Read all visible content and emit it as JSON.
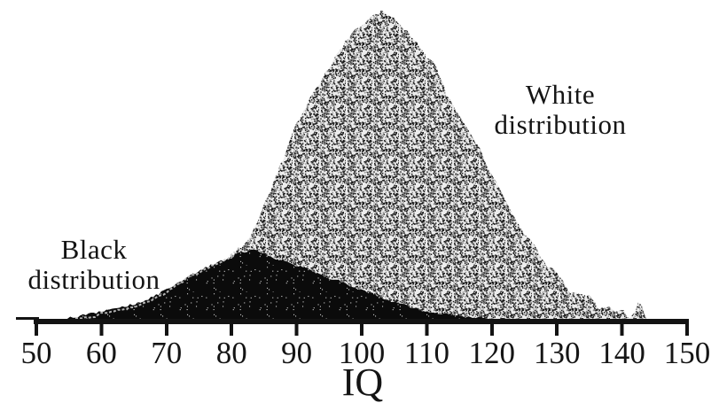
{
  "chart_data": {
    "type": "area",
    "xlabel": "IQ",
    "ylabel": "",
    "x_range": [
      50,
      150
    ],
    "x_ticks": [
      50,
      60,
      70,
      80,
      90,
      100,
      110,
      120,
      130,
      140,
      150
    ],
    "y_axis_visible": false,
    "legend_position": "none",
    "grid": false,
    "series": [
      {
        "name": "White distribution",
        "style": "stippled-gray-halftone",
        "color": "#9a9a9a",
        "points": [
          [
            55,
            0.005
          ],
          [
            56,
            0.008
          ],
          [
            57,
            0.011
          ],
          [
            58,
            0.014
          ],
          [
            59,
            0.017
          ],
          [
            60,
            0.026
          ],
          [
            61,
            0.03
          ],
          [
            62,
            0.034
          ],
          [
            63,
            0.038
          ],
          [
            64,
            0.043
          ],
          [
            65,
            0.048
          ],
          [
            66,
            0.054
          ],
          [
            67,
            0.061
          ],
          [
            68,
            0.071
          ],
          [
            69,
            0.083
          ],
          [
            70,
            0.094
          ],
          [
            71,
            0.109
          ],
          [
            72,
            0.123
          ],
          [
            73,
            0.137
          ],
          [
            74,
            0.149
          ],
          [
            75,
            0.157
          ],
          [
            76,
            0.169
          ],
          [
            77,
            0.18
          ],
          [
            78,
            0.189
          ],
          [
            79,
            0.197
          ],
          [
            80,
            0.214
          ],
          [
            81,
            0.231
          ],
          [
            82,
            0.248
          ],
          [
            83,
            0.28
          ],
          [
            84,
            0.323
          ],
          [
            85,
            0.374
          ],
          [
            86,
            0.426
          ],
          [
            87,
            0.477
          ],
          [
            88,
            0.529
          ],
          [
            89,
            0.583
          ],
          [
            90,
            0.637
          ],
          [
            91,
            0.677
          ],
          [
            92,
            0.717
          ],
          [
            93,
            0.754
          ],
          [
            94,
            0.786
          ],
          [
            95,
            0.82
          ],
          [
            96,
            0.854
          ],
          [
            97,
            0.886
          ],
          [
            98,
            0.914
          ],
          [
            99,
            0.94
          ],
          [
            100,
            0.96
          ],
          [
            101,
            0.974
          ],
          [
            102,
            0.989
          ],
          [
            103,
            1.0
          ],
          [
            104,
            0.991
          ],
          [
            105,
            0.977
          ],
          [
            106,
            0.957
          ],
          [
            107,
            0.934
          ],
          [
            108,
            0.911
          ],
          [
            109,
            0.886
          ],
          [
            110,
            0.857
          ],
          [
            111,
            0.837
          ],
          [
            112,
            0.794
          ],
          [
            113,
            0.737
          ],
          [
            114,
            0.694
          ],
          [
            115,
            0.657
          ],
          [
            116,
            0.63
          ],
          [
            117,
            0.595
          ],
          [
            118,
            0.565
          ],
          [
            119,
            0.515
          ],
          [
            120,
            0.47
          ],
          [
            121,
            0.43
          ],
          [
            122,
            0.39
          ],
          [
            123,
            0.35
          ],
          [
            124,
            0.31
          ],
          [
            125,
            0.285
          ],
          [
            126,
            0.265
          ],
          [
            127,
            0.23
          ],
          [
            128,
            0.19
          ],
          [
            129,
            0.172
          ],
          [
            130,
            0.16
          ],
          [
            131,
            0.126
          ],
          [
            132,
            0.092
          ],
          [
            133,
            0.089
          ],
          [
            134,
            0.087
          ],
          [
            135,
            0.08
          ],
          [
            135.8,
            0.06
          ],
          [
            136.5,
            0.037
          ],
          [
            137.5,
            0.043
          ],
          [
            138.5,
            0.04
          ],
          [
            139.5,
            0.035
          ],
          [
            140.3,
            0.031
          ],
          [
            140.8,
            0.02
          ],
          [
            141.3,
            0.014
          ],
          [
            142,
            0.031
          ],
          [
            142.5,
            0.057
          ],
          [
            143,
            0.049
          ],
          [
            143.4,
            0.031
          ],
          [
            143.8,
            0.009
          ],
          [
            144,
            0.004
          ]
        ]
      },
      {
        "name": "Black distribution",
        "style": "solid-black",
        "color": "#0b0b0b",
        "points": [
          [
            52,
            0.003
          ],
          [
            54,
            0.009
          ],
          [
            56,
            0.014
          ],
          [
            58,
            0.023
          ],
          [
            60,
            0.031
          ],
          [
            62,
            0.04
          ],
          [
            64,
            0.051
          ],
          [
            66,
            0.063
          ],
          [
            68,
            0.08
          ],
          [
            70,
            0.103
          ],
          [
            72,
            0.129
          ],
          [
            74,
            0.151
          ],
          [
            76,
            0.174
          ],
          [
            78,
            0.191
          ],
          [
            80,
            0.206
          ],
          [
            81,
            0.22
          ],
          [
            82,
            0.226
          ],
          [
            83,
            0.229
          ],
          [
            84,
            0.226
          ],
          [
            85,
            0.22
          ],
          [
            86,
            0.209
          ],
          [
            87,
            0.2
          ],
          [
            88,
            0.194
          ],
          [
            89,
            0.189
          ],
          [
            90,
            0.18
          ],
          [
            91,
            0.174
          ],
          [
            92,
            0.166
          ],
          [
            93,
            0.157
          ],
          [
            94,
            0.149
          ],
          [
            95,
            0.14
          ],
          [
            96,
            0.134
          ],
          [
            97,
            0.126
          ],
          [
            98,
            0.117
          ],
          [
            99,
            0.111
          ],
          [
            100,
            0.1
          ],
          [
            101,
            0.094
          ],
          [
            102,
            0.086
          ],
          [
            103,
            0.077
          ],
          [
            104,
            0.069
          ],
          [
            105,
            0.063
          ],
          [
            106,
            0.057
          ],
          [
            107,
            0.049
          ],
          [
            108,
            0.043
          ],
          [
            109,
            0.037
          ],
          [
            110,
            0.034
          ],
          [
            111,
            0.029
          ],
          [
            112,
            0.026
          ],
          [
            113,
            0.023
          ],
          [
            114,
            0.02
          ],
          [
            115,
            0.017
          ],
          [
            116,
            0.014
          ],
          [
            117,
            0.013
          ],
          [
            118,
            0.011
          ],
          [
            119,
            0.011
          ],
          [
            120,
            0.009
          ],
          [
            121,
            0.008
          ],
          [
            122,
            0.007
          ],
          [
            123,
            0.006
          ],
          [
            124,
            0.005
          ],
          [
            125,
            0.004
          ],
          [
            126,
            0.003
          ]
        ]
      }
    ],
    "annotations": [
      {
        "line1": "White",
        "line2": "distribution",
        "target": "White distribution"
      },
      {
        "line1": "Black",
        "line2": "distribution",
        "target": "Black distribution"
      }
    ]
  },
  "colors": {
    "background": "#ffffff",
    "axis": "#131313",
    "tick_label": "#151515",
    "white_series_fill": "#9a9a9a",
    "black_series_fill": "#0b0b0b",
    "white_tail_outline": "#c6c6c6"
  }
}
